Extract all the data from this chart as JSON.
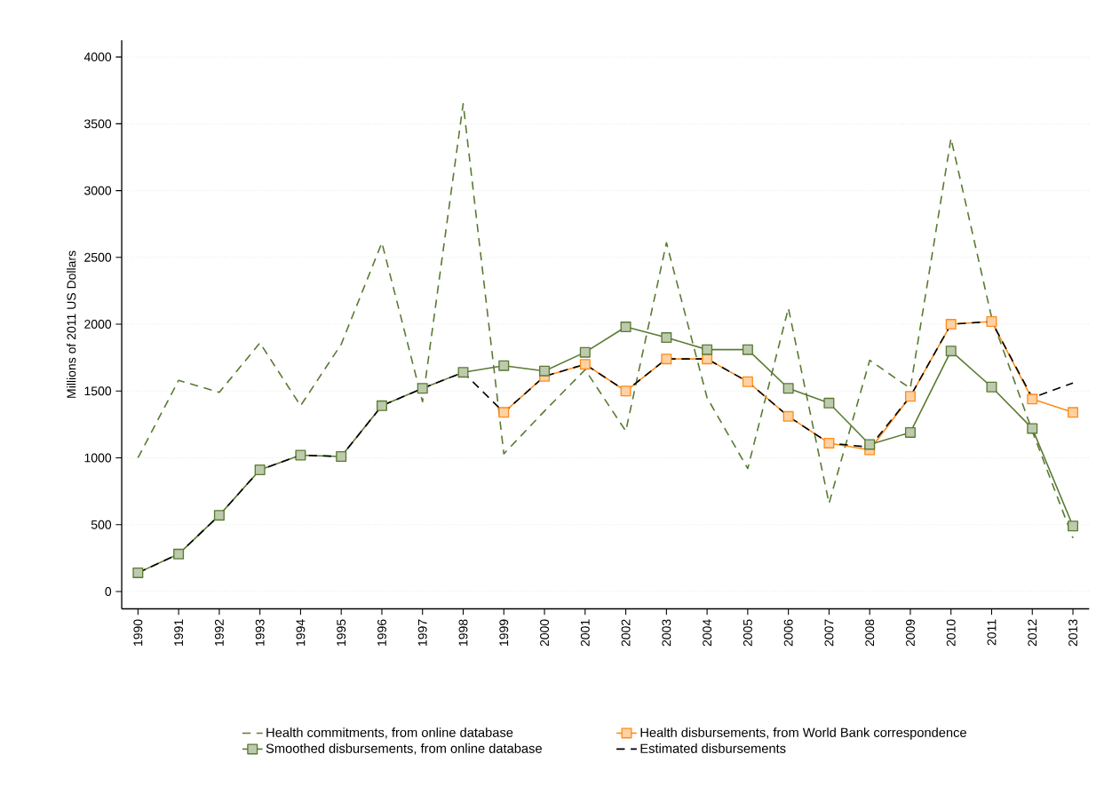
{
  "chart_data": {
    "type": "line",
    "ylabel": "Millions of 2011 US Dollars",
    "x": [
      1990,
      1991,
      1992,
      1993,
      1994,
      1995,
      1996,
      1997,
      1998,
      1999,
      2000,
      2001,
      2002,
      2003,
      2004,
      2005,
      2006,
      2007,
      2008,
      2009,
      2010,
      2011,
      2012,
      2013
    ],
    "xlim": [
      1989.6,
      2013.4
    ],
    "ylim": [
      -130,
      4125
    ],
    "xticks": [
      1990,
      1991,
      1992,
      1993,
      1994,
      1995,
      1996,
      1997,
      1998,
      1999,
      2000,
      2001,
      2002,
      2003,
      2004,
      2005,
      2006,
      2007,
      2008,
      2009,
      2010,
      2011,
      2012,
      2013
    ],
    "yticks": [
      0,
      500,
      1000,
      1500,
      2000,
      2500,
      3000,
      3500,
      4000
    ],
    "grid": "y",
    "legend": "bottom",
    "series": [
      {
        "name": "Health commitments, from online database",
        "color": "#5a7a32",
        "line_style": "dashed",
        "marker": "none",
        "values": [
          1000,
          1580,
          1490,
          1860,
          1390,
          1850,
          2610,
          1420,
          3650,
          1030,
          1350,
          1660,
          1200,
          2610,
          1450,
          920,
          2120,
          660,
          1730,
          1520,
          3390,
          2050,
          1200,
          400
        ]
      },
      {
        "name": "Health disbursements, from World Bank correspondence",
        "color": "#ff8c1a",
        "line_style": "solid",
        "marker": "square",
        "values": [
          null,
          null,
          null,
          null,
          null,
          null,
          null,
          null,
          null,
          1340,
          1610,
          1700,
          1500,
          1740,
          1740,
          1570,
          1310,
          1110,
          1060,
          1460,
          2000,
          2020,
          1440,
          1340
        ]
      },
      {
        "name": "Smoothed disbursements, from online database",
        "color": "#5a7a32",
        "line_style": "solid",
        "marker": "square",
        "values": [
          140,
          280,
          570,
          910,
          1020,
          1010,
          1390,
          1520,
          1640,
          1690,
          1650,
          1790,
          1980,
          1900,
          1810,
          1810,
          1520,
          1410,
          1100,
          1190,
          1800,
          1530,
          1220,
          490
        ]
      },
      {
        "name": "Estimated disbursements",
        "color": "#000000",
        "line_style": "dashed",
        "marker": "none",
        "values": [
          140,
          280,
          570,
          910,
          1020,
          1010,
          1390,
          1520,
          1640,
          1340,
          1610,
          1700,
          1500,
          1740,
          1740,
          1570,
          1310,
          1110,
          1080,
          1460,
          2000,
          2020,
          1450,
          1560
        ]
      }
    ]
  }
}
